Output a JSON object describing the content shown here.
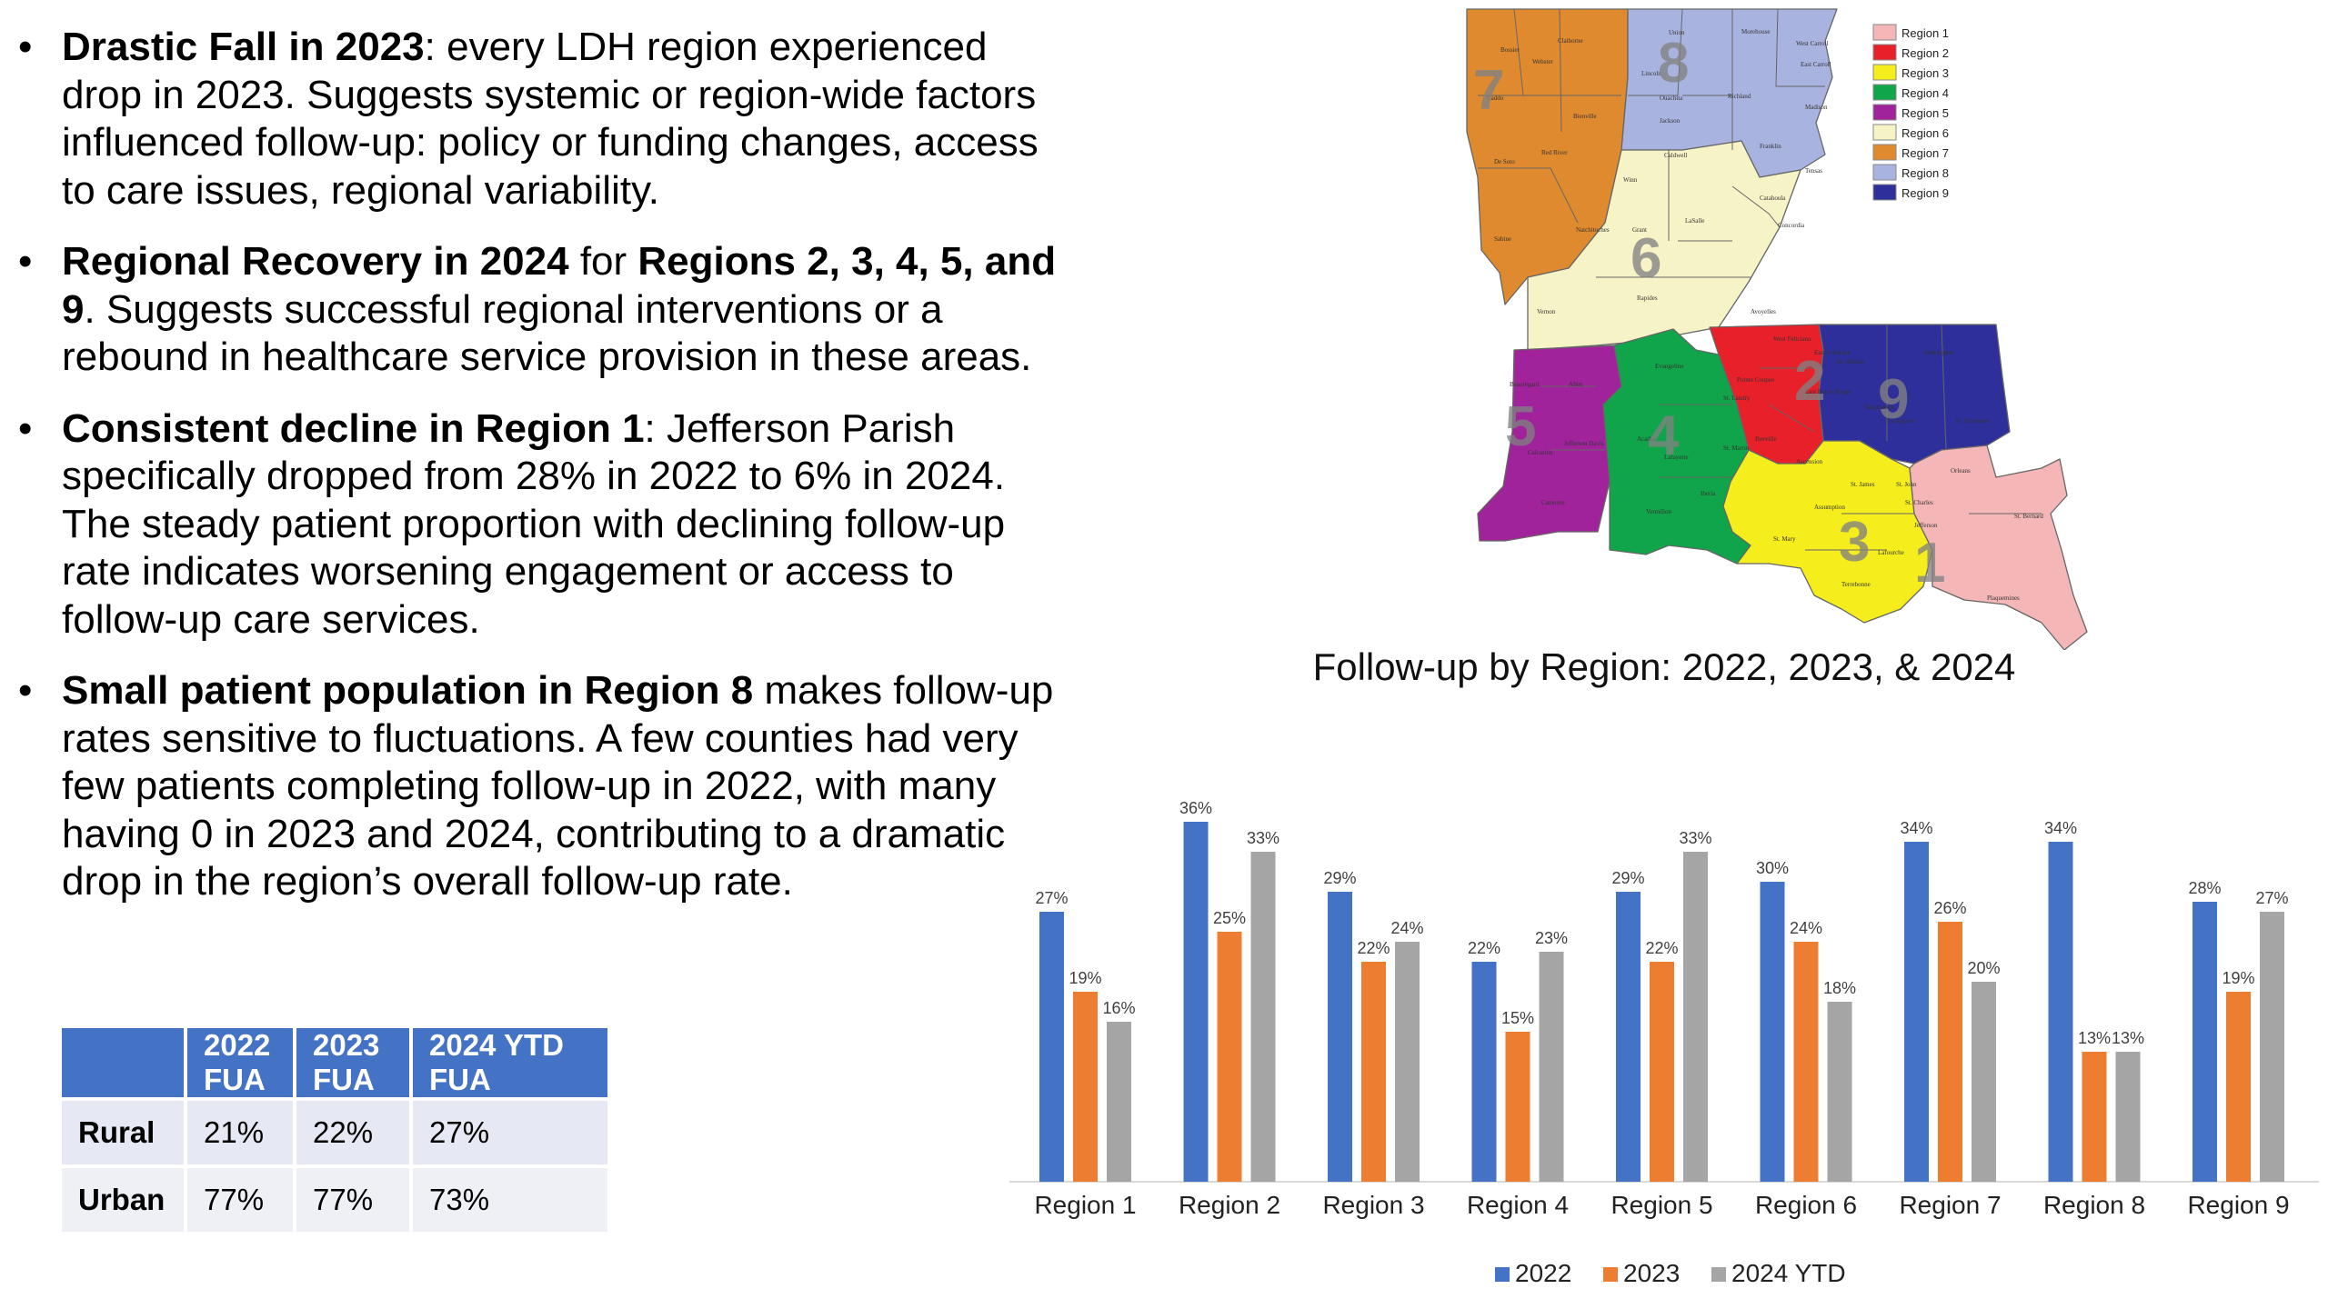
{
  "bullets": [
    {
      "parts": [
        {
          "b": true,
          "t": "Drastic Fall in 2023"
        },
        {
          "b": false,
          "t": ": every LDH region experienced drop in 2023. Suggests systemic or region-wide factors influenced follow-up: policy or funding changes, access to care issues, regional variability."
        }
      ]
    },
    {
      "parts": [
        {
          "b": true,
          "t": "Regional Recovery in 2024"
        },
        {
          "b": false,
          "t": " for "
        },
        {
          "b": true,
          "t": "Regions 2, 3, 4, 5, and 9"
        },
        {
          "b": false,
          "t": ". Suggests successful regional interventions or a rebound in healthcare service provision in these areas."
        }
      ]
    },
    {
      "parts": [
        {
          "b": true,
          "t": "Consistent decline in Region 1"
        },
        {
          "b": false,
          "t": ": Jefferson Parish specifically dropped from 28% in 2022 to 6% in 2024. The steady patient proportion with declining follow-up rate indicates worsening engagement or access to follow-up care services."
        }
      ]
    },
    {
      "parts": [
        {
          "b": true,
          "t": "Small patient population in Region 8"
        },
        {
          "b": false,
          "t": " makes follow-up rates sensitive to fluctuations. A few counties had very few patients completing follow-up in 2022, with many having 0 in 2023 and 2024, contributing to a dramatic drop in the region’s overall follow-up rate."
        }
      ]
    }
  ],
  "bullet_char": "•",
  "fua_table": {
    "headers": [
      "",
      "2022 FUA",
      "2023 FUA",
      "2024 YTD FUA"
    ],
    "rows": [
      [
        "Rural",
        "21%",
        "22%",
        "27%"
      ],
      [
        "Urban",
        "77%",
        "77%",
        "73%"
      ]
    ]
  },
  "map": {
    "legend": [
      {
        "label": "Region 1",
        "color": "#f4b6b6"
      },
      {
        "label": "Region 2",
        "color": "#e8202a"
      },
      {
        "label": "Region 3",
        "color": "#f5ee1c"
      },
      {
        "label": "Region 4",
        "color": "#10a54a"
      },
      {
        "label": "Region 5",
        "color": "#a0239b"
      },
      {
        "label": "Region 6",
        "color": "#f6f3c6"
      },
      {
        "label": "Region 7",
        "color": "#df8a2e"
      },
      {
        "label": "Region 8",
        "color": "#a9b3df"
      },
      {
        "label": "Region 9",
        "color": "#2e2f9b"
      }
    ],
    "region_numbers": [
      "1",
      "2",
      "3",
      "4",
      "5",
      "6",
      "7",
      "8",
      "9"
    ],
    "parishes": [
      "Bossier",
      "Claiborne",
      "Union",
      "Morehouse",
      "West Carroll",
      "East Carroll",
      "Webster",
      "Caddo",
      "Bienville",
      "Lincoln",
      "Ouachita",
      "Richland",
      "Madison",
      "Jackson",
      "Red River",
      "De Soto",
      "Caldwell",
      "Franklin",
      "Tensas",
      "Winn",
      "LaSalle",
      "Catahoula",
      "Natchitoches",
      "Sabine",
      "Grant",
      "Concordia",
      "Vernon",
      "Rapides",
      "Avoyelles",
      "West Feliciana",
      "East Feliciana",
      "St. Helena",
      "Washington",
      "Pointe Coupee",
      "East Baton Rouge",
      "Tangipahoa",
      "Beauregard",
      "Allen",
      "Evangeline",
      "St. Landry",
      "Livingston",
      "St. Tammany",
      "Jefferson Davis",
      "Calcasieu",
      "Acadia",
      "Lafayette",
      "St. Martin",
      "Iberville",
      "Ascension",
      "St. James",
      "Cameron",
      "Vermilion",
      "Iberia",
      "St. John",
      "St. Charles",
      "Orleans",
      "St. Bernard",
      "Jefferson",
      "St. Mary",
      "Assumption",
      "Lafourche",
      "Terrebonne",
      "Plaquemines"
    ]
  },
  "chart_data": {
    "type": "bar",
    "title": "Follow-up by Region: 2022, 2023, & 2024",
    "categories": [
      "Region 1",
      "Region 2",
      "Region 3",
      "Region 4",
      "Region 5",
      "Region 6",
      "Region 7",
      "Region 8",
      "Region 9"
    ],
    "series": [
      {
        "name": "2022",
        "color": "#4472c4",
        "values": [
          27,
          36,
          29,
          22,
          29,
          30,
          34,
          34,
          28
        ]
      },
      {
        "name": "2023",
        "color": "#ed7d31",
        "values": [
          19,
          25,
          22,
          15,
          22,
          24,
          26,
          13,
          19
        ]
      },
      {
        "name": "2024 YTD",
        "color": "#a5a5a5",
        "values": [
          16,
          33,
          24,
          23,
          33,
          18,
          20,
          13,
          27
        ]
      }
    ],
    "value_suffix": "%",
    "ylim": [
      0,
      36
    ],
    "grid": false,
    "legend": "bottom",
    "data_labels": true
  }
}
